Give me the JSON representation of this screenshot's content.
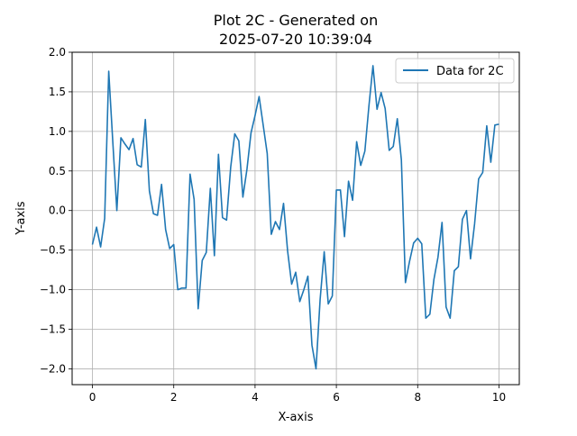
{
  "chart_data": {
    "type": "line",
    "title_line1": "Plot 2C - Generated on",
    "title_line2": "2025-07-20 10:39:04",
    "xlabel": "X-axis",
    "ylabel": "Y-axis",
    "xlim": [
      -0.5,
      10.5
    ],
    "ylim": [
      -2.2,
      2.0
    ],
    "x_ticks": [
      0,
      2,
      4,
      6,
      8,
      10
    ],
    "x_tick_labels": [
      "0",
      "2",
      "4",
      "6",
      "8",
      "10"
    ],
    "y_ticks": [
      -2.0,
      -1.5,
      -1.0,
      -0.5,
      0.0,
      0.5,
      1.0,
      1.5,
      2.0
    ],
    "y_tick_labels": [
      "−2.0",
      "−1.5",
      "−1.0",
      "−0.5",
      "0.0",
      "0.5",
      "1.0",
      "1.5",
      "2.0"
    ],
    "grid": true,
    "legend_position": "top-right",
    "series": [
      {
        "name": "Data for 2C",
        "color": "#1f77b4",
        "x": [
          0.0,
          0.1,
          0.2,
          0.3,
          0.4,
          0.5,
          0.6,
          0.7,
          0.8,
          0.9,
          1.0,
          1.1,
          1.2,
          1.3,
          1.4,
          1.5,
          1.6,
          1.7,
          1.8,
          1.9,
          2.0,
          2.1,
          2.2,
          2.3,
          2.4,
          2.5,
          2.6,
          2.7,
          2.8,
          2.9,
          3.0,
          3.1,
          3.2,
          3.3,
          3.4,
          3.5,
          3.6,
          3.7,
          3.8,
          3.9,
          4.0,
          4.1,
          4.2,
          4.3,
          4.4,
          4.5,
          4.6,
          4.7,
          4.8,
          4.9,
          5.0,
          5.1,
          5.2,
          5.3,
          5.4,
          5.5,
          5.6,
          5.7,
          5.8,
          5.9,
          6.0,
          6.1,
          6.2,
          6.3,
          6.4,
          6.5,
          6.6,
          6.7,
          6.8,
          6.9,
          7.0,
          7.1,
          7.2,
          7.3,
          7.4,
          7.5,
          7.6,
          7.7,
          7.8,
          7.9,
          8.0,
          8.1,
          8.2,
          8.3,
          8.4,
          8.5,
          8.6,
          8.7,
          8.8,
          8.9,
          9.0,
          9.1,
          9.2,
          9.3,
          9.4,
          9.5,
          9.6,
          9.7,
          9.8,
          9.9,
          10.0
        ],
        "y": [
          -0.43,
          -0.21,
          -0.46,
          -0.1,
          1.76,
          0.87,
          0.0,
          0.92,
          0.84,
          0.77,
          0.91,
          0.58,
          0.55,
          1.15,
          0.25,
          -0.04,
          -0.06,
          0.33,
          -0.24,
          -0.48,
          -0.43,
          -1.0,
          -0.98,
          -0.98,
          0.46,
          0.14,
          -1.24,
          -0.63,
          -0.53,
          0.28,
          -0.57,
          0.71,
          -0.09,
          -0.12,
          0.55,
          0.97,
          0.88,
          0.17,
          0.52,
          0.98,
          1.2,
          1.44,
          1.08,
          0.72,
          -0.3,
          -0.14,
          -0.24,
          0.09,
          -0.51,
          -0.93,
          -0.78,
          -1.15,
          -1.0,
          -0.83,
          -1.7,
          -2.0,
          -1.12,
          -0.52,
          -1.18,
          -1.08,
          0.26,
          0.26,
          -0.33,
          0.37,
          0.13,
          0.87,
          0.57,
          0.75,
          1.32,
          1.83,
          1.28,
          1.49,
          1.29,
          0.76,
          0.81,
          1.16,
          0.64,
          -0.91,
          -0.64,
          -0.41,
          -0.35,
          -0.42,
          -1.36,
          -1.31,
          -0.87,
          -0.59,
          -0.15,
          -1.22,
          -1.36,
          -0.76,
          -0.71,
          -0.11,
          0.0,
          -0.61,
          -0.17,
          0.4,
          0.48,
          1.07,
          0.61,
          1.08,
          1.09
        ]
      }
    ]
  }
}
